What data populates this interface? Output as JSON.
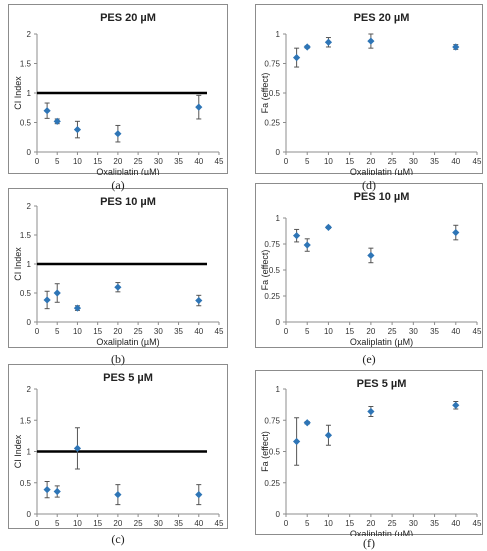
{
  "chart_data": [
    {
      "id": "a",
      "type": "scatter",
      "caption": "(a)",
      "title": "PES 20 µM",
      "xlabel": "Oxaliplatin (µM)",
      "ylabel": "CI Index",
      "xlim": [
        0,
        45
      ],
      "ylim": [
        0,
        2
      ],
      "xticks": [
        0,
        5,
        10,
        15,
        20,
        25,
        30,
        35,
        40,
        45
      ],
      "yticks": [
        0,
        0.5,
        1,
        1.5,
        2
      ],
      "yticklabels": [
        "0",
        "0.5",
        "1",
        "1.5",
        "2"
      ],
      "reference_line": 1,
      "series": [
        {
          "x": [
            2.5,
            5,
            10,
            20,
            40
          ],
          "y": [
            0.7,
            0.52,
            0.38,
            0.31,
            0.76
          ],
          "err": [
            0.13,
            0.04,
            0.14,
            0.14,
            0.2
          ]
        }
      ]
    },
    {
      "id": "d",
      "type": "scatter",
      "caption": "(d)",
      "title": "PES 20 µM",
      "xlabel": "Oxaliplatin (µM)",
      "ylabel": "Fa (effect)",
      "xlim": [
        0,
        45
      ],
      "ylim": [
        0,
        1
      ],
      "xticks": [
        0,
        5,
        10,
        15,
        20,
        25,
        30,
        35,
        40,
        45
      ],
      "yticks": [
        0,
        0.25,
        0.5,
        0.75,
        1
      ],
      "yticklabels": [
        "0",
        "0.25",
        "0.5",
        "0.75",
        "1"
      ],
      "series": [
        {
          "x": [
            2.5,
            5,
            10,
            20,
            40
          ],
          "y": [
            0.8,
            0.89,
            0.93,
            0.94,
            0.89
          ],
          "err": [
            0.08,
            0.01,
            0.04,
            0.06,
            0.02
          ]
        }
      ]
    },
    {
      "id": "b",
      "type": "scatter",
      "caption": "(b)",
      "title": "PES 10 µM",
      "xlabel": "Oxaliplatin (µM)",
      "ylabel": "CI Index",
      "xlim": [
        0,
        45
      ],
      "ylim": [
        0,
        2
      ],
      "xticks": [
        0,
        5,
        10,
        15,
        20,
        25,
        30,
        35,
        40,
        45
      ],
      "yticks": [
        0,
        0.5,
        1,
        1.5,
        2
      ],
      "yticklabels": [
        "0",
        "0.5",
        "1",
        "1.5",
        "2"
      ],
      "reference_line": 1,
      "series": [
        {
          "x": [
            2.5,
            5,
            10,
            20,
            40
          ],
          "y": [
            0.38,
            0.5,
            0.24,
            0.6,
            0.37
          ],
          "err": [
            0.15,
            0.16,
            0.04,
            0.08,
            0.09
          ]
        }
      ]
    },
    {
      "id": "e",
      "type": "scatter",
      "caption": "(e)",
      "title": "PES 10 µM",
      "xlabel": "Oxaliplatin (µM)",
      "ylabel": "Fa (effect)",
      "xlim": [
        0,
        45
      ],
      "ylim": [
        0,
        1
      ],
      "xticks": [
        0,
        5,
        10,
        15,
        20,
        25,
        30,
        35,
        40,
        45
      ],
      "yticks": [
        0,
        0.25,
        0.5,
        0.75,
        1
      ],
      "yticklabels": [
        "0",
        "0.25",
        "0.5",
        "0.75",
        "1"
      ],
      "series": [
        {
          "x": [
            2.5,
            5,
            10,
            20,
            40
          ],
          "y": [
            0.83,
            0.74,
            0.91,
            0.64,
            0.86
          ],
          "err": [
            0.06,
            0.06,
            0.01,
            0.07,
            0.07
          ]
        }
      ]
    },
    {
      "id": "c",
      "type": "scatter",
      "caption": "(c)",
      "title": "PES 5 µM",
      "xlabel": "Oxaliplatin (µM)",
      "ylabel": "CI Index",
      "xlim": [
        0,
        45
      ],
      "ylim": [
        0,
        2
      ],
      "xticks": [
        0,
        5,
        10,
        15,
        20,
        25,
        30,
        35,
        40,
        45
      ],
      "yticks": [
        0,
        0.5,
        1,
        1.5,
        2
      ],
      "yticklabels": [
        "0",
        "0.5",
        "1",
        "1.5",
        "2"
      ],
      "reference_line": 1,
      "series": [
        {
          "x": [
            2.5,
            5,
            10,
            20,
            40
          ],
          "y": [
            0.39,
            0.36,
            1.05,
            0.31,
            0.31
          ],
          "err": [
            0.13,
            0.09,
            0.33,
            0.16,
            0.16
          ]
        }
      ]
    },
    {
      "id": "f",
      "type": "scatter",
      "caption": "(f)",
      "title": "PES 5 µM",
      "xlabel": "Oxaliplatin (µM)",
      "ylabel": "Fa (effect)",
      "xlim": [
        0,
        45
      ],
      "ylim": [
        0,
        1
      ],
      "xticks": [
        0,
        5,
        10,
        15,
        20,
        25,
        30,
        35,
        40,
        45
      ],
      "yticks": [
        0,
        0.25,
        0.5,
        0.75,
        1
      ],
      "yticklabels": [
        "0",
        "0.25",
        "0.5",
        "0.75",
        "1"
      ],
      "series": [
        {
          "x": [
            2.5,
            5,
            10,
            20,
            40
          ],
          "y": [
            0.58,
            0.73,
            0.63,
            0.82,
            0.87
          ],
          "err": [
            0.19,
            0.01,
            0.08,
            0.04,
            0.03
          ]
        }
      ]
    }
  ],
  "colors": {
    "marker": "#2e75b6",
    "reference_line": "#000000",
    "errorbar": "#555555",
    "axis": "#8c8c8c"
  }
}
